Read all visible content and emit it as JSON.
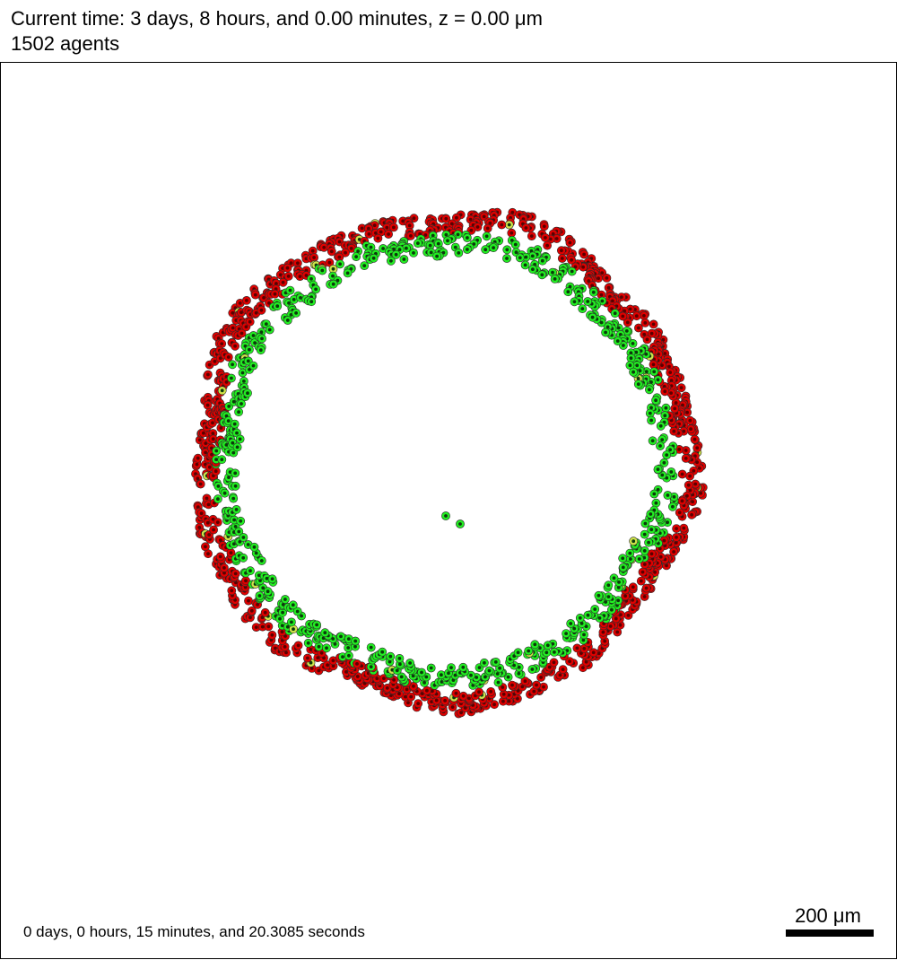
{
  "header": {
    "time_text": "Current time: 3 days, 8 hours, and 0.00 minutes, z = 0.00 μm",
    "agents_text": "1502 agents"
  },
  "footer": {
    "elapsed_text": "0 days, 0 hours, 15 minutes, and 20.3085 seconds",
    "scale_label": "200 μm"
  },
  "colors": {
    "outer_cells": "#e00000",
    "inner_cells": "#22ee22",
    "cell_nucleus": "#0a3a0a",
    "outer_nucleus": "#5a0000",
    "mixed_cells": "#cfe34a",
    "background": "#ffffff"
  },
  "ring": {
    "center_scatter": [
      {
        "label": "",
        "type": "inner"
      },
      {
        "label": "",
        "type": "inner"
      }
    ]
  }
}
